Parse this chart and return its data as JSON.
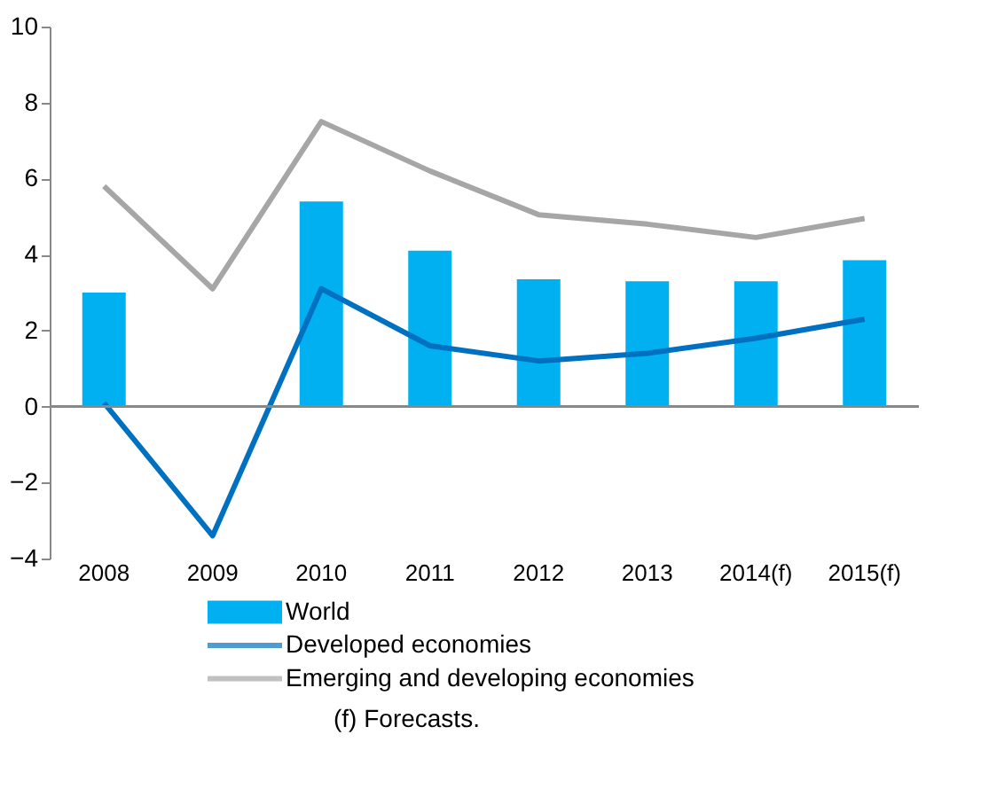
{
  "chart_data": {
    "type": "bar",
    "categories": [
      "2008",
      "2009",
      "2010",
      "2011",
      "2012",
      "2013",
      "2014(f)",
      "2015(f)"
    ],
    "series": [
      {
        "name": "World",
        "color": "#00b0f0",
        "values": [
          3.0,
          0.0,
          5.4,
          4.1,
          3.35,
          3.3,
          3.3,
          3.85
        ]
      },
      {
        "name": "Developed economies",
        "type": "line",
        "color": "#0070c0",
        "values": [
          0.1,
          -3.4,
          3.1,
          1.6,
          1.2,
          1.4,
          1.8,
          2.3
        ]
      },
      {
        "name": "Emerging and developing economies",
        "type": "line",
        "color": "#a6a6a6",
        "values": [
          5.8,
          3.1,
          7.5,
          6.2,
          5.05,
          4.8,
          4.45,
          4.95
        ]
      }
    ],
    "ylim": [
      -4,
      10
    ],
    "yticks": [
      -4,
      -2,
      0,
      2,
      4,
      6,
      8,
      10
    ],
    "ref_lines": [
      {
        "axis": "y",
        "value": 0,
        "color": "#888888",
        "line_style": "solid"
      }
    ],
    "grid": false,
    "legend": "bottom",
    "marker": "none",
    "line_style": "solid",
    "annotations": [
      "(f) Forecasts."
    ]
  }
}
